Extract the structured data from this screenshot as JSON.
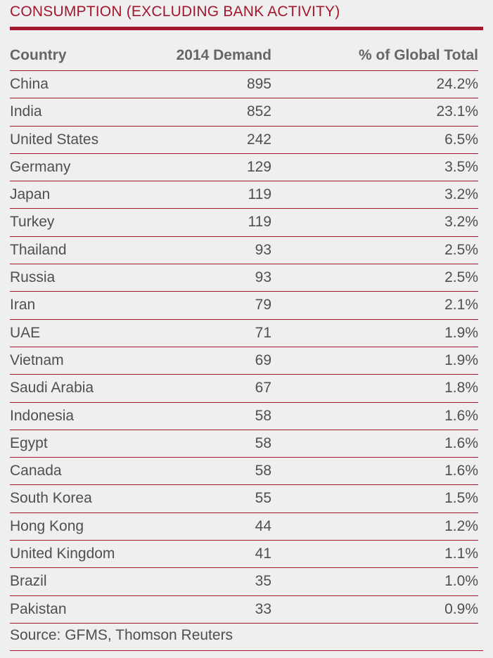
{
  "title": "CONSUMPTION (EXCLUDING BANK ACTIVITY)",
  "colors": {
    "accent": "#a3172e",
    "background": "#efefef",
    "text": "#4f4f4f"
  },
  "columns": [
    "Country",
    "2014 Demand",
    "% of Global Total"
  ],
  "rows": [
    [
      "China",
      "895",
      "24.2%"
    ],
    [
      "India",
      "852",
      "23.1%"
    ],
    [
      "United States",
      "242",
      "6.5%"
    ],
    [
      "Germany",
      "129",
      "3.5%"
    ],
    [
      "Japan",
      "119",
      "3.2%"
    ],
    [
      "Turkey",
      "119",
      "3.2%"
    ],
    [
      "Thailand",
      "93",
      "2.5%"
    ],
    [
      "Russia",
      "93",
      "2.5%"
    ],
    [
      "Iran",
      "79",
      "2.1%"
    ],
    [
      "UAE",
      "71",
      "1.9%"
    ],
    [
      "Vietnam",
      "69",
      "1.9%"
    ],
    [
      "Saudi Arabia",
      "67",
      "1.8%"
    ],
    [
      "Indonesia",
      "58",
      "1.6%"
    ],
    [
      "Egypt",
      "58",
      "1.6%"
    ],
    [
      "Canada",
      "58",
      "1.6%"
    ],
    [
      "South Korea",
      "55",
      "1.5%"
    ],
    [
      "Hong Kong",
      "44",
      "1.2%"
    ],
    [
      "United Kingdom",
      "41",
      "1.1%"
    ],
    [
      "Brazil",
      "35",
      "1.0%"
    ],
    [
      "Pakistan",
      "33",
      "0.9%"
    ]
  ],
  "source": "Source: GFMS, Thomson Reuters"
}
